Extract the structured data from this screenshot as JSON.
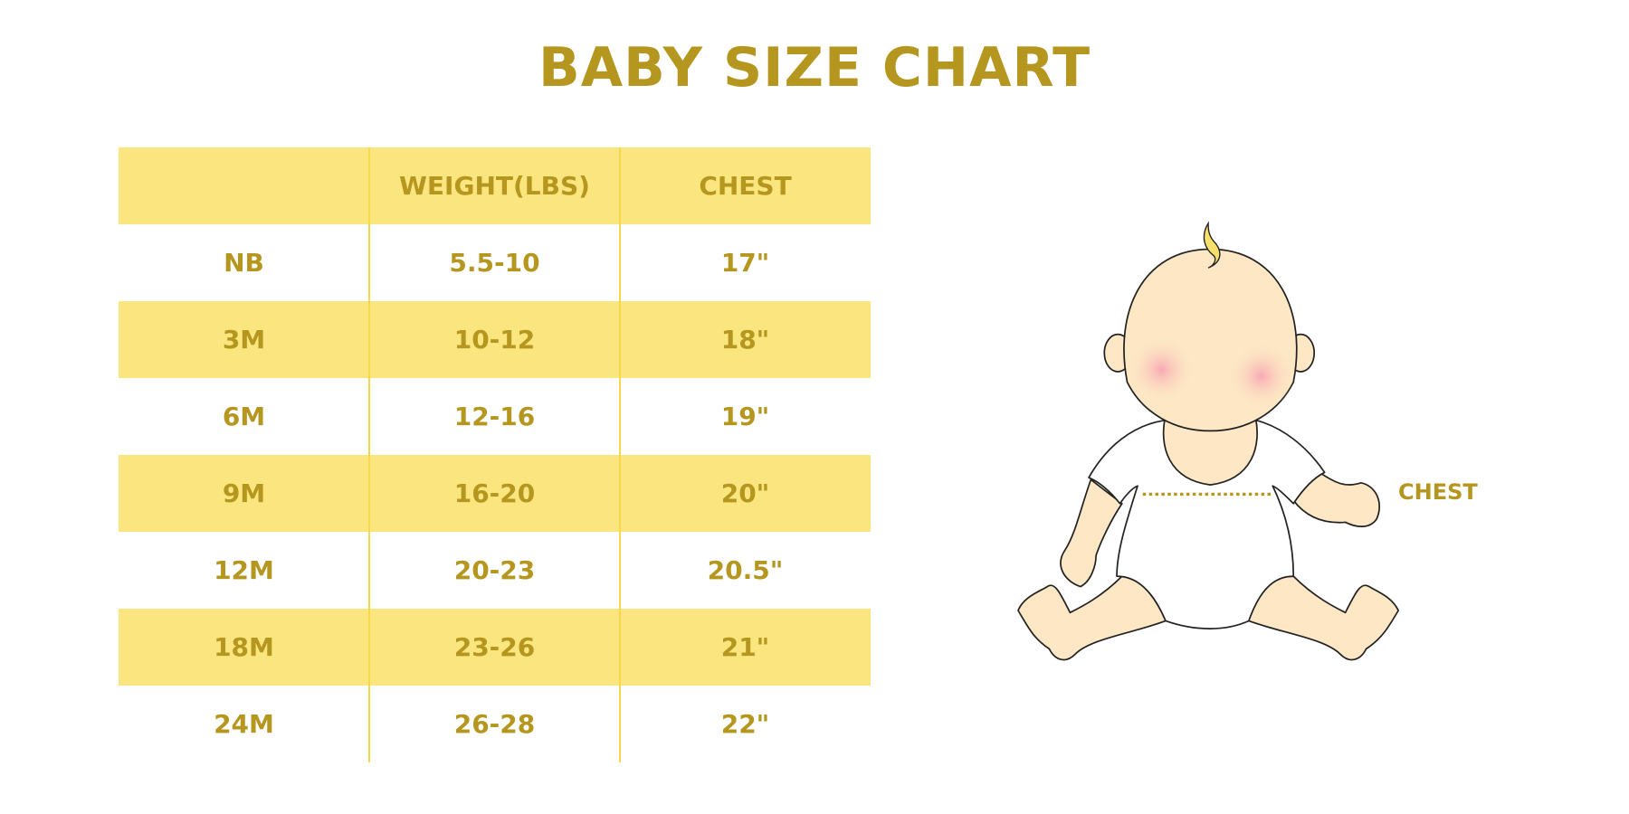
{
  "title": "BABY SIZE CHART",
  "colors": {
    "text": "#B5961E",
    "band": "#FAE57E",
    "divider": "#F6D84A",
    "skin": "#FDE7C4",
    "cheek": "#F8B4BC",
    "hair": "#F6E06A"
  },
  "table": {
    "headers": [
      "",
      "WEIGHT(LBS)",
      "CHEST"
    ],
    "rows": [
      [
        "NB",
        "5.5-10",
        "17\""
      ],
      [
        "3M",
        "10-12",
        "18\""
      ],
      [
        "6M",
        "12-16",
        "19\""
      ],
      [
        "9M",
        "16-20",
        "20\""
      ],
      [
        "12M",
        "20-23",
        "20.5\""
      ],
      [
        "18M",
        "23-26",
        "21\""
      ],
      [
        "24M",
        "26-28",
        "22\""
      ]
    ]
  },
  "illustration": {
    "chest_label": "CHEST"
  }
}
